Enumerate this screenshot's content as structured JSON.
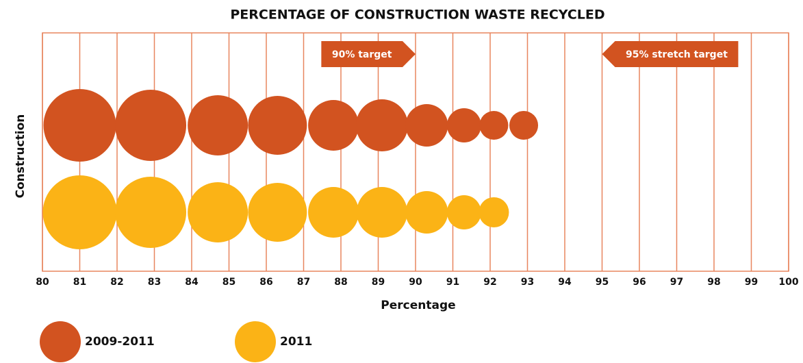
{
  "chart_data": {
    "type": "bubble",
    "title": "PERCENTAGE OF CONSTRUCTION WASTE RECYCLED",
    "xlabel": "Percentage",
    "ylabel": "Construction",
    "xlim": [
      80,
      100
    ],
    "xticks": [
      80,
      81,
      82,
      83,
      84,
      85,
      86,
      87,
      88,
      89,
      90,
      91,
      92,
      93,
      94,
      95,
      96,
      97,
      98,
      99,
      100
    ],
    "grid": true,
    "series": [
      {
        "name": "2009-2011",
        "color": "#d25320",
        "x": [
          81.0,
          82.9,
          84.7,
          86.3,
          87.8,
          89.1,
          90.3,
          91.3,
          92.1,
          92.9
        ],
        "sizes": [
          53,
          52,
          44,
          43,
          37,
          38,
          31,
          25,
          21,
          21
        ]
      },
      {
        "name": "2011",
        "color": "#fbb316",
        "x": [
          81.0,
          82.9,
          84.7,
          86.3,
          87.8,
          89.1,
          90.3,
          91.3,
          92.1
        ],
        "sizes": [
          54,
          52,
          44,
          43,
          37,
          37,
          31,
          25,
          22
        ]
      }
    ],
    "annotations": [
      {
        "text": "90%  target",
        "x": 90,
        "direction": "right"
      },
      {
        "text": "95%  stretch target",
        "x": 95,
        "direction": "left"
      }
    ]
  }
}
